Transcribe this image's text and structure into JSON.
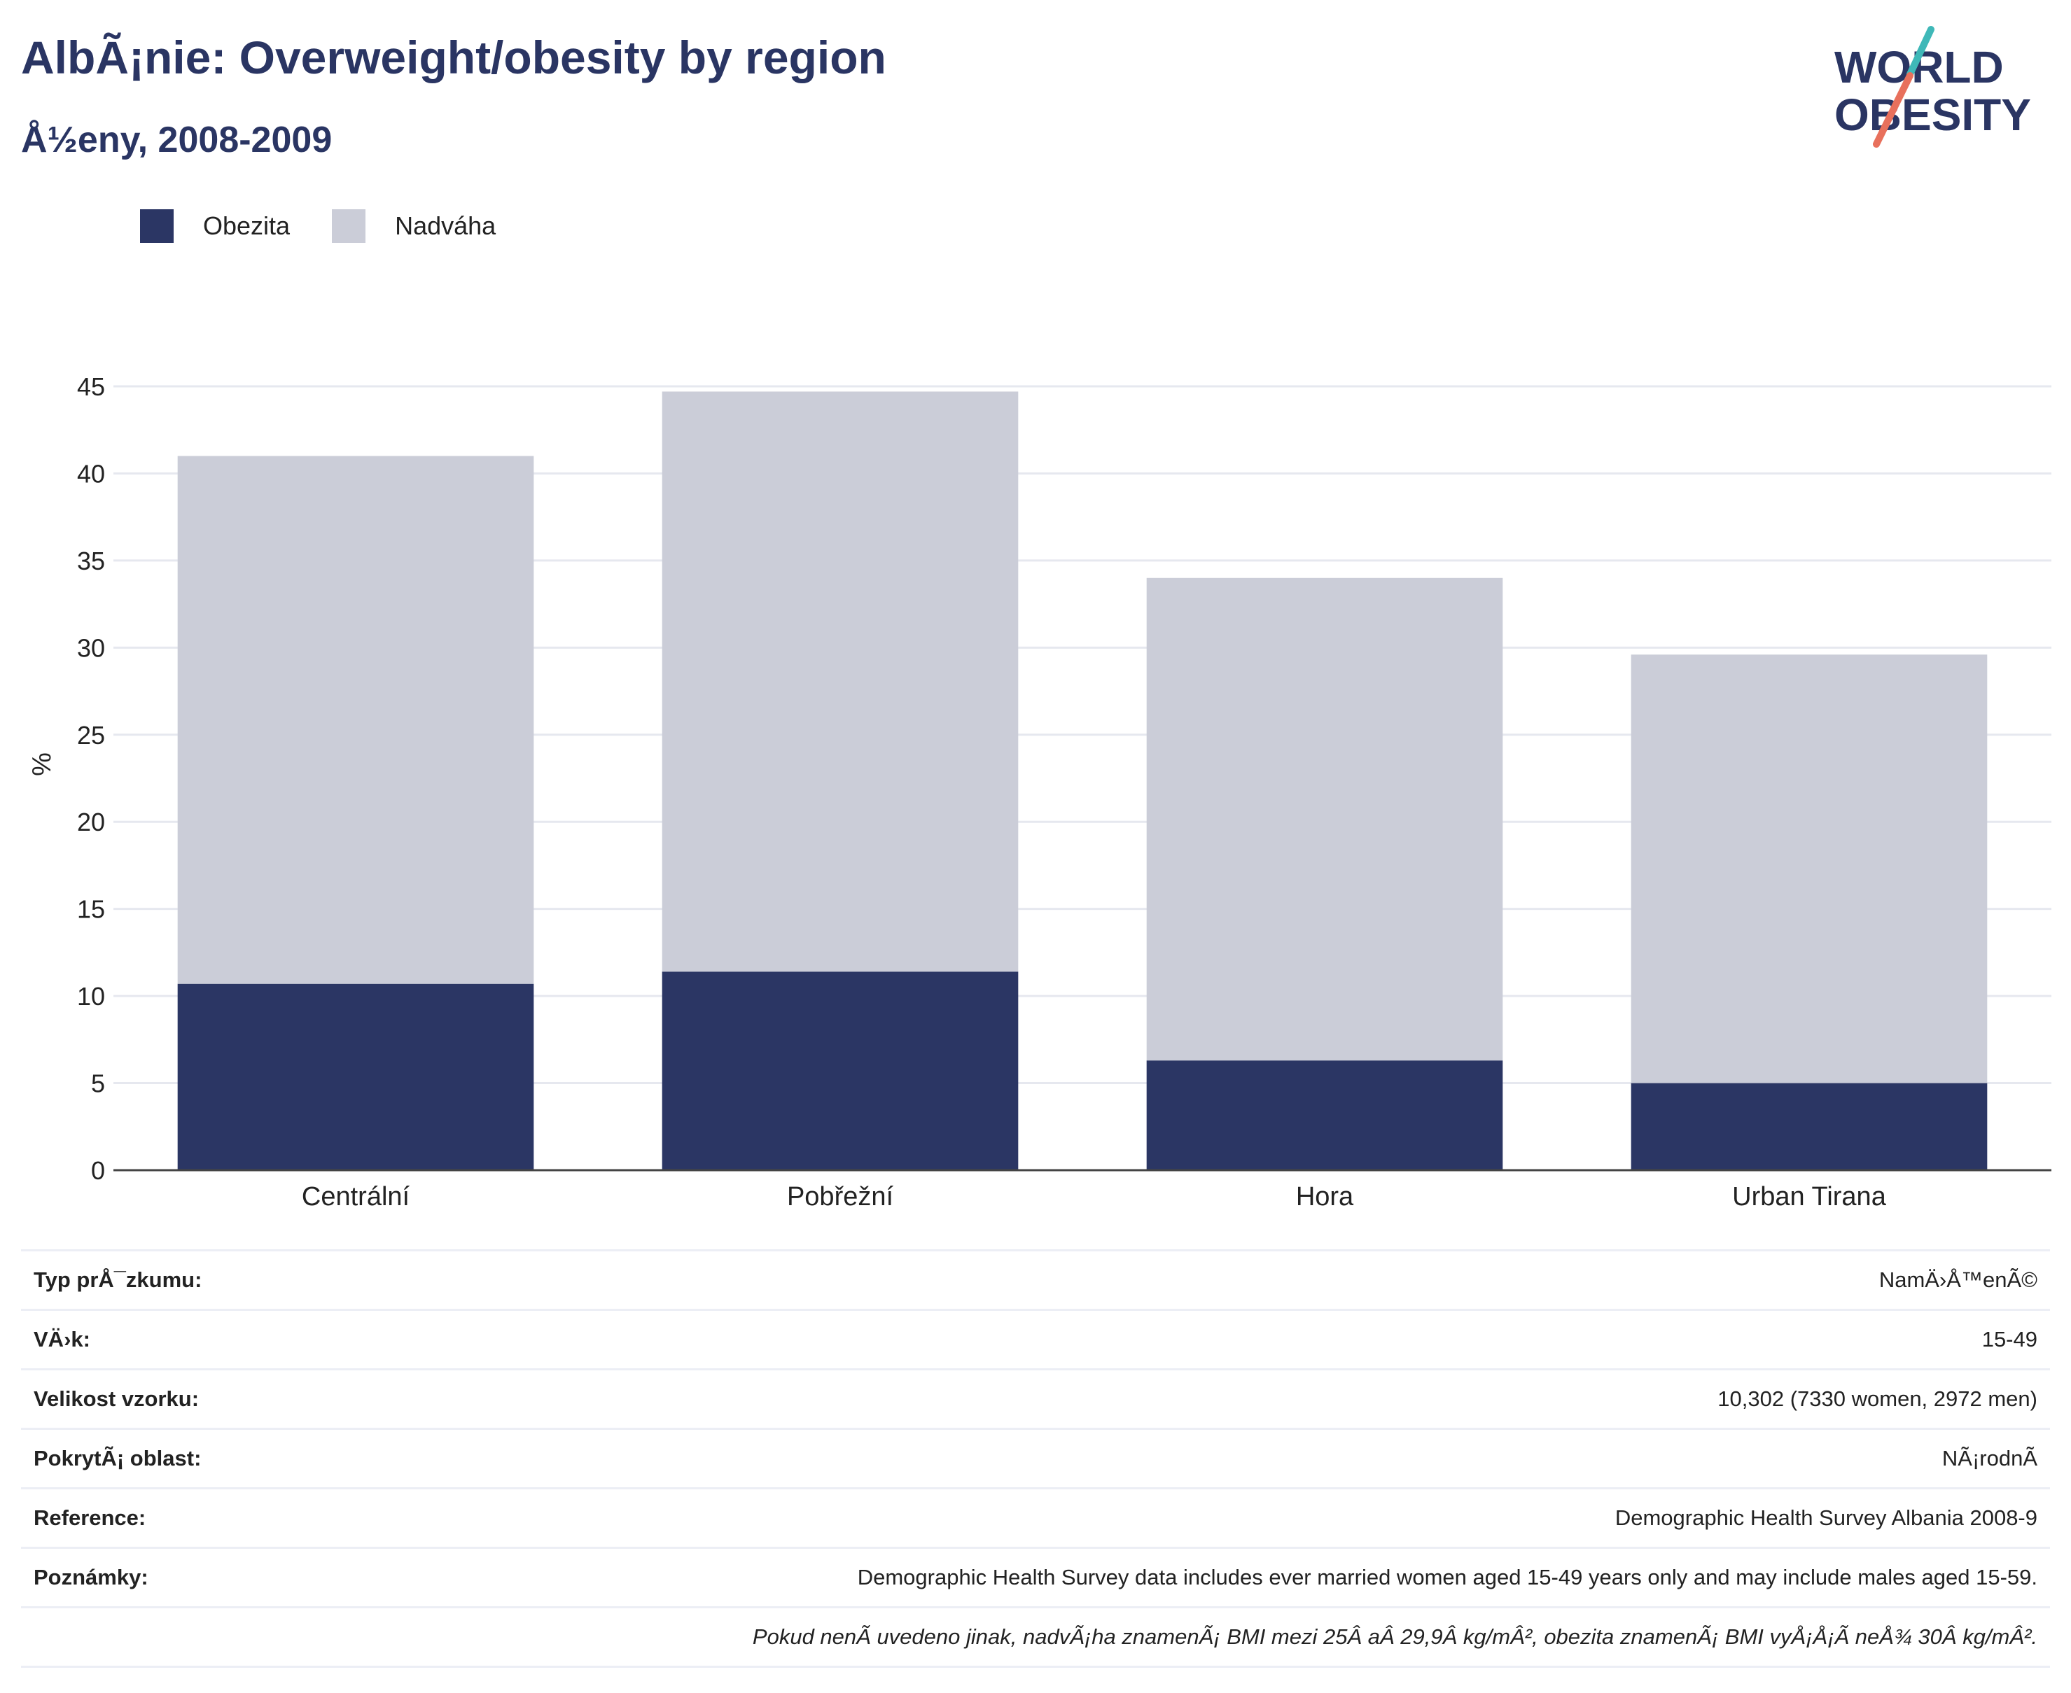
{
  "header": {
    "title": "AlbÃ¡nie: Overweight/obesity by region",
    "subtitle": "Å½eny, 2008-2009"
  },
  "logo": {
    "line1": "WORLD",
    "line2": "OBESITY"
  },
  "colors": {
    "obesity": "#2b3664",
    "overweight": "#cbcdd8",
    "text": "#2a3563",
    "grid": "#e6e8ef"
  },
  "legend": [
    {
      "label": "Obezita",
      "color": "#2b3664"
    },
    {
      "label": "Nadváha",
      "color": "#cbcdd8"
    }
  ],
  "chart_data": {
    "type": "bar",
    "stacked": true,
    "categories": [
      "Centrální",
      "Pobřežní",
      "Hora",
      "Urban Tirana"
    ],
    "series": [
      {
        "name": "Obezita",
        "values": [
          10.7,
          11.4,
          6.3,
          5.0
        ]
      },
      {
        "name": "Nadváha",
        "values": [
          30.3,
          33.3,
          27.7,
          24.6
        ]
      }
    ],
    "ylabel": "%",
    "ylim": [
      0,
      45
    ],
    "yticks": [
      0,
      5,
      10,
      15,
      20,
      25,
      30,
      35,
      40,
      45
    ],
    "grid": true,
    "legend_position": "top-left"
  },
  "info": {
    "rows": [
      {
        "key": "Typ prÅ¯zkumu:",
        "value": "NamÄ›Å™enÃ©"
      },
      {
        "key": "VÄ›k:",
        "value": "15-49"
      },
      {
        "key": "Velikost vzorku:",
        "value": "10,302 (7330 women, 2972 men)"
      },
      {
        "key": "PokrytÃ¡ oblast:",
        "value": "NÃ¡rodnÃ"
      },
      {
        "key": "Reference:",
        "value": "Demographic Health Survey Albania 2008-9"
      },
      {
        "key": "Poznámky:",
        "value": "Demographic Health Survey data includes ever married women aged 15-49 years only and may include males aged 15-59."
      }
    ],
    "footnote": "Pokud nenÃ uvedeno jinak, nadvÃ¡ha znamenÃ¡ BMI mezi 25Â aÂ 29,9Â kg/mÂ², obezita znamenÃ¡ BMI vyÅ¡Å¡Ã neÅ¾ 30Â kg/mÂ²."
  }
}
